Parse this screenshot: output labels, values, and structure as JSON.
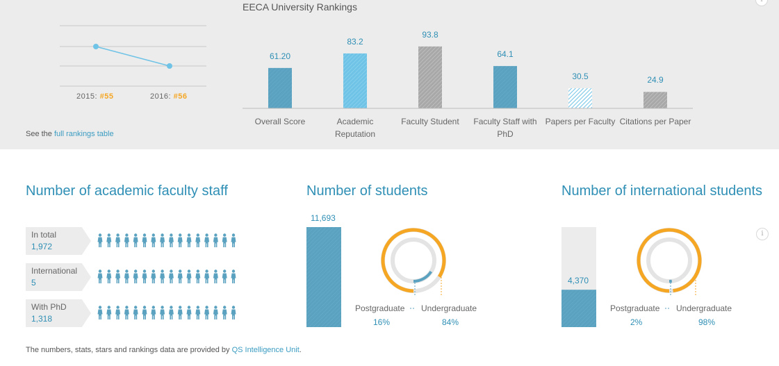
{
  "rankings": {
    "years": [
      {
        "year_label": "2015:",
        "rank": "#55"
      },
      {
        "year_label": "2016:",
        "rank": "#56"
      }
    ],
    "see_prefix": "See the",
    "see_link": "full rankings table"
  },
  "colors": {
    "blue": "#5aa2c0",
    "light_blue": "#6fc3e6",
    "gray": "#a8a8a8",
    "orange": "#f5a623",
    "accent_text": "#2f8fb5"
  },
  "chart_data": [
    {
      "type": "line",
      "x": [
        "2015",
        "2016"
      ],
      "values": [
        55,
        56
      ],
      "grid": true
    },
    {
      "type": "bar",
      "title": "EECA University Rankings",
      "categories": [
        "Overall Score",
        "Academic Reputation",
        "Faculty Student",
        "Faculty Staff with PhD",
        "Papers per Faculty",
        "Citations per Paper"
      ],
      "values": [
        61.2,
        83.2,
        93.8,
        64.1,
        30.5,
        24.9
      ],
      "value_labels": [
        "61.20",
        "83.2",
        "93.8",
        "64.1",
        "30.5",
        "24.9"
      ],
      "ylim": [
        0,
        100
      ]
    },
    {
      "type": "bar",
      "title": "Number of students",
      "values": [
        11693
      ],
      "value_labels": [
        "11,693"
      ]
    },
    {
      "type": "pie",
      "categories": [
        "Postgraduate",
        "Undergraduate"
      ],
      "values": [
        16,
        84
      ],
      "value_labels": [
        "16%",
        "84%"
      ]
    },
    {
      "type": "bar",
      "title": "Number of international students",
      "values": [
        4370
      ],
      "value_labels": [
        "4,370"
      ],
      "ylim": [
        0,
        11693
      ]
    },
    {
      "type": "pie",
      "categories": [
        "Postgraduate",
        "Undergraduate"
      ],
      "values": [
        2,
        98
      ],
      "value_labels": [
        "2%",
        "98%"
      ]
    }
  ],
  "faculty": {
    "title": "Number of academic faculty staff",
    "rows": [
      {
        "label": "In total",
        "value": "1,972"
      },
      {
        "label": "International",
        "value": "5"
      },
      {
        "label": "With PhD",
        "value": "1,318"
      }
    ]
  },
  "students": {
    "title": "Number of students"
  },
  "international": {
    "title": "Number of international students"
  },
  "info_icon": "i",
  "footer": {
    "prefix": "The numbers, stats, stars and rankings data are provided by",
    "link": "QS Intelligence Unit",
    "suffix": "."
  }
}
